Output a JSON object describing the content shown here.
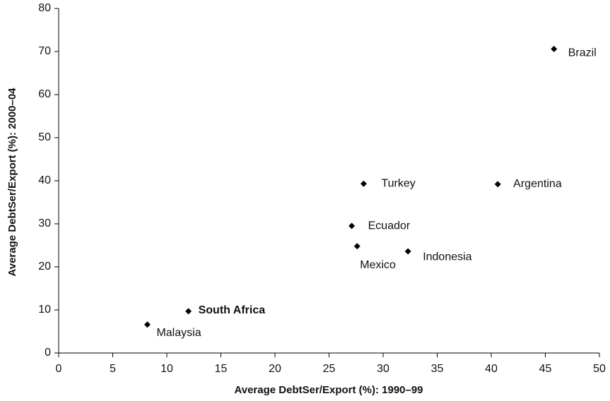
{
  "chart_data": {
    "type": "scatter",
    "xlabel": "Average DebtSer/Export (%): 1990–99",
    "ylabel": "Average DebtSer/Export (%): 2000–04",
    "labels": [
      "Brazil",
      "Argentina",
      "Turkey",
      "Ecuador",
      "Mexico",
      "Indonesia",
      "South Africa",
      "Malaysia"
    ],
    "x": [
      45.8,
      40.6,
      28.2,
      27.1,
      27.6,
      32.3,
      12.0,
      8.2
    ],
    "y": [
      70.6,
      39.2,
      39.3,
      29.5,
      24.8,
      23.6,
      9.7,
      6.6
    ],
    "color": "#000000",
    "label_colors": [
      "#000000",
      "#000000",
      "#000000",
      "#000000",
      "#000000",
      "#000000",
      "#808080",
      "#000000"
    ],
    "xlim": [
      0,
      50
    ],
    "xticks": [
      0,
      5,
      10,
      15,
      20,
      25,
      30,
      35,
      40,
      45,
      50
    ],
    "ylim": [
      0,
      80
    ],
    "yticks": [
      0,
      10,
      20,
      30,
      40,
      50,
      60,
      70,
      80
    ],
    "grid": false
  }
}
